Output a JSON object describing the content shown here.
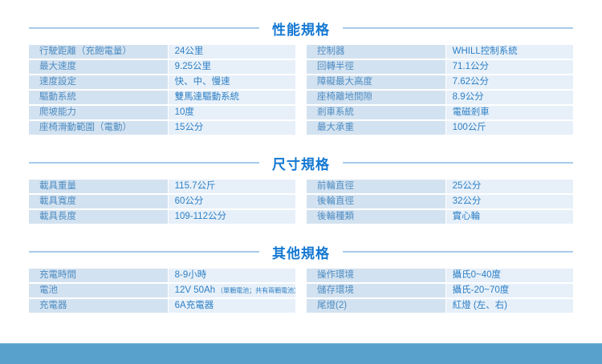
{
  "theme": {
    "title_color": "#1478d2",
    "line_color": "#a8cbec",
    "label_bg": "#d3e2f0",
    "value_bg": "#e7f0f9",
    "label_text": "#4e8cc2",
    "value_text": "#2d7fc5",
    "footer_bar": "#58a1cd"
  },
  "sections": [
    {
      "id": "performance",
      "title": "性能規格",
      "tables": [
        {
          "rows": [
            {
              "label": "行駛距離（充飽電量）",
              "value": "24公里"
            },
            {
              "label": "最大速度",
              "value": "9.25公里"
            },
            {
              "label": "速度設定",
              "value": "快、中、慢速"
            },
            {
              "label": "驅動系統",
              "value": "雙馬達驅動系統"
            },
            {
              "label": "爬坡能力",
              "value": "10度"
            },
            {
              "label": "座椅滑動範圍（電動）",
              "value": "15公分"
            }
          ]
        },
        {
          "rows": [
            {
              "label": "控制器",
              "value": "WHILL控制系統"
            },
            {
              "label": "回轉半徑",
              "value": "71.1公分"
            },
            {
              "label": "障礙最大高度",
              "value": "7.62公分"
            },
            {
              "label": "座椅離地間隙",
              "value": "8.9公分"
            },
            {
              "label": "剎車系統",
              "value": "電磁剎車"
            },
            {
              "label": "最大承重",
              "value": "100公斤"
            }
          ]
        }
      ]
    },
    {
      "id": "dimensions",
      "title": "尺寸規格",
      "tables": [
        {
          "rows": [
            {
              "label": "載具重量",
              "value": "115.7公斤"
            },
            {
              "label": "載具寬度",
              "value": "60公分"
            },
            {
              "label": "載具長度",
              "value": "109-112公分"
            }
          ]
        },
        {
          "rows": [
            {
              "label": "前輪直徑",
              "value": "25公分"
            },
            {
              "label": "後輪直徑",
              "value": "32公分"
            },
            {
              "label": "後輪種類",
              "value": "實心輪"
            }
          ]
        }
      ]
    },
    {
      "id": "other",
      "title": "其他規格",
      "tables": [
        {
          "rows": [
            {
              "label": "充電時間",
              "value": "8-9小時"
            },
            {
              "label": "電池",
              "value": "12V 50Ah",
              "note": "（單顆電池；共有兩顆電池）"
            },
            {
              "label": "充電器",
              "value": "6A充電器"
            }
          ]
        },
        {
          "rows": [
            {
              "label": "操作環境",
              "value": "攝氏0~40度"
            },
            {
              "label": "儲存環境",
              "value": "攝氏-20~70度"
            },
            {
              "label": "尾燈(2)",
              "value": "紅燈 (左、右)"
            }
          ]
        }
      ]
    }
  ]
}
